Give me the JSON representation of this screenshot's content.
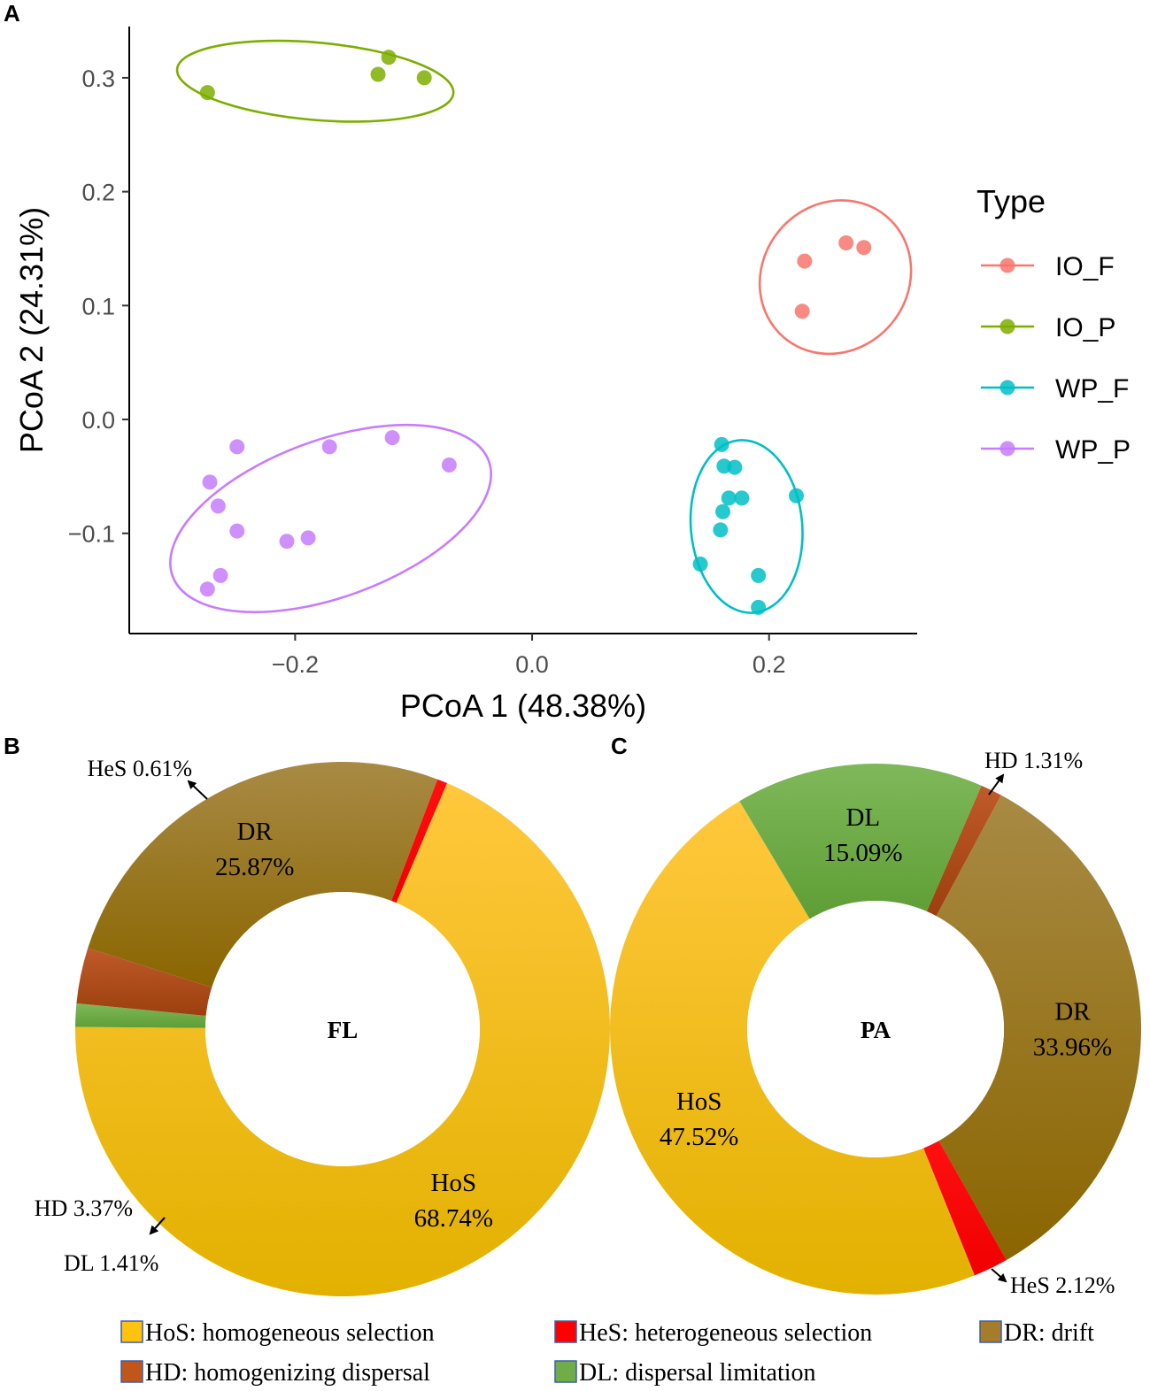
{
  "chart_data": [
    {
      "type": "scatter",
      "panel": "A",
      "xlabel": "PCoA 1 (48.38%)",
      "ylabel": "PCoA 2 (24.31%)",
      "xlim": [
        -0.34,
        0.325
      ],
      "ylim": [
        -0.188,
        0.345
      ],
      "xticks": [
        -0.2,
        0.0,
        0.2
      ],
      "xtick_labels": [
        "−0.2",
        "0.0",
        "0.2"
      ],
      "yticks": [
        -0.1,
        0.0,
        0.1,
        0.2,
        0.3
      ],
      "ytick_labels": [
        "−0.1",
        "0.0",
        "0.1",
        "0.2",
        "0.3"
      ],
      "legend_title": "Type",
      "series": [
        {
          "name": "IO_F",
          "color": "#F8766D",
          "points": [
            [
              0.23,
              0.139
            ],
            [
              0.265,
              0.155
            ],
            [
              0.28,
              0.151
            ],
            [
              0.228,
              0.095
            ]
          ],
          "ellipse": {
            "cx": 0.256,
            "cy": 0.125,
            "rx": 0.067,
            "ry": 0.064,
            "angle_deg": -50
          }
        },
        {
          "name": "IO_P",
          "color": "#7CAE00",
          "points": [
            [
              -0.274,
              0.287
            ],
            [
              -0.13,
              0.303
            ],
            [
              -0.121,
              0.318
            ],
            [
              -0.091,
              0.3
            ]
          ],
          "ellipse": {
            "cx": -0.183,
            "cy": 0.297,
            "rx": 0.117,
            "ry": 0.034,
            "angle_deg": 5
          }
        },
        {
          "name": "WP_F",
          "color": "#00BFC4",
          "points": [
            [
              0.16,
              -0.022
            ],
            [
              0.162,
              -0.041
            ],
            [
              0.171,
              -0.042
            ],
            [
              0.166,
              -0.069
            ],
            [
              0.177,
              -0.069
            ],
            [
              0.223,
              -0.067
            ],
            [
              0.161,
              -0.081
            ],
            [
              0.159,
              -0.097
            ],
            [
              0.142,
              -0.127
            ],
            [
              0.191,
              -0.137
            ],
            [
              0.191,
              -0.165
            ]
          ],
          "ellipse": {
            "cx": 0.181,
            "cy": -0.094,
            "rx": 0.047,
            "ry": 0.076,
            "angle_deg": -5
          }
        },
        {
          "name": "WP_P",
          "color": "#C77CFF",
          "points": [
            [
              -0.249,
              -0.024
            ],
            [
              -0.171,
              -0.024
            ],
            [
              -0.118,
              -0.016
            ],
            [
              -0.07,
              -0.04
            ],
            [
              -0.272,
              -0.055
            ],
            [
              -0.265,
              -0.076
            ],
            [
              -0.249,
              -0.098
            ],
            [
              -0.207,
              -0.107
            ],
            [
              -0.189,
              -0.104
            ],
            [
              -0.263,
              -0.137
            ],
            [
              -0.274,
              -0.149
            ]
          ],
          "ellipse": {
            "cx": -0.17,
            "cy": -0.087,
            "rx": 0.142,
            "ry": 0.069,
            "angle_deg": -20
          }
        }
      ]
    },
    {
      "type": "pie",
      "panel": "B",
      "center_label": "FL",
      "slices": [
        {
          "label": "HoS",
          "value": 68.74,
          "color": "#FFC20E"
        },
        {
          "label": "DL",
          "value": 1.41,
          "color": "#70AD47"
        },
        {
          "label": "HD",
          "value": 3.37,
          "color": "#B5501F"
        },
        {
          "label": "DR",
          "value": 25.87,
          "color": "#9E7A28"
        },
        {
          "label": "HeS",
          "value": 0.61,
          "color": "#FF0000"
        }
      ],
      "inner_labels": {
        "HoS": [
          "HoS",
          "68.74%"
        ],
        "DR": [
          "DR",
          "25.87%"
        ]
      },
      "outer_labels": {
        "HeS": "HeS 0.61%",
        "HD": "HD 3.37%",
        "DL": "DL 1.41%"
      }
    },
    {
      "type": "pie",
      "panel": "C",
      "center_label": "PA",
      "slices": [
        {
          "label": "HD",
          "value": 1.31,
          "color": "#B5501F"
        },
        {
          "label": "DR",
          "value": 33.96,
          "color": "#9E7A28"
        },
        {
          "label": "HeS",
          "value": 2.12,
          "color": "#FF0000"
        },
        {
          "label": "HoS",
          "value": 47.52,
          "color": "#FFC20E"
        },
        {
          "label": "DL",
          "value": 15.09,
          "color": "#70AD47"
        }
      ],
      "inner_labels": {
        "HoS": [
          "HoS",
          "47.52%"
        ],
        "DR": [
          "DR",
          "33.96%"
        ],
        "DL": [
          "DL",
          "15.09%"
        ]
      },
      "outer_labels": {
        "HD": "HD 1.31%",
        "HeS": "HeS 2.12%"
      }
    }
  ],
  "panel_letters": {
    "a": "A",
    "b": "B",
    "c": "C"
  },
  "bottom_legend": [
    {
      "key": "HoS",
      "text": "HoS: homogeneous selection",
      "color": "#FFC20E"
    },
    {
      "key": "HeS",
      "text": "HeS: heterogeneous selection",
      "color": "#FF0000"
    },
    {
      "key": "DR",
      "text": "DR: drift",
      "color": "#A47C2A"
    },
    {
      "key": "HD",
      "text": "HD: homogenizing dispersal",
      "color": "#C0561A"
    },
    {
      "key": "DL",
      "text": "DL: dispersal limitation",
      "color": "#70AD47"
    }
  ]
}
